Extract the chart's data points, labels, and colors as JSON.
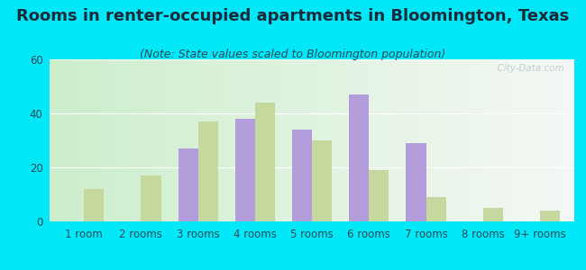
{
  "title": "Rooms in renter-occupied apartments in Bloomington, Texas",
  "subtitle": "(Note: State values scaled to Bloomington population)",
  "categories": [
    "1 room",
    "2 rooms",
    "3 rooms",
    "4 rooms",
    "5 rooms",
    "6 rooms",
    "7 rooms",
    "8 rooms",
    "9+ rooms"
  ],
  "bloomington": [
    0,
    0,
    27,
    38,
    34,
    47,
    29,
    0,
    0
  ],
  "texas": [
    12,
    17,
    37,
    44,
    30,
    19,
    9,
    5,
    4
  ],
  "bloomington_color": "#b39ddb",
  "texas_color": "#c5d89d",
  "background_outer": "#00e8f8",
  "ylim": [
    0,
    60
  ],
  "yticks": [
    0,
    20,
    40,
    60
  ],
  "title_fontsize": 13,
  "subtitle_fontsize": 9,
  "tick_fontsize": 8.5,
  "legend_fontsize": 9.5,
  "bar_width": 0.35,
  "title_color": "#1a2a3a",
  "subtitle_color": "#2a4a5a",
  "tick_color": "#2a4a5a"
}
